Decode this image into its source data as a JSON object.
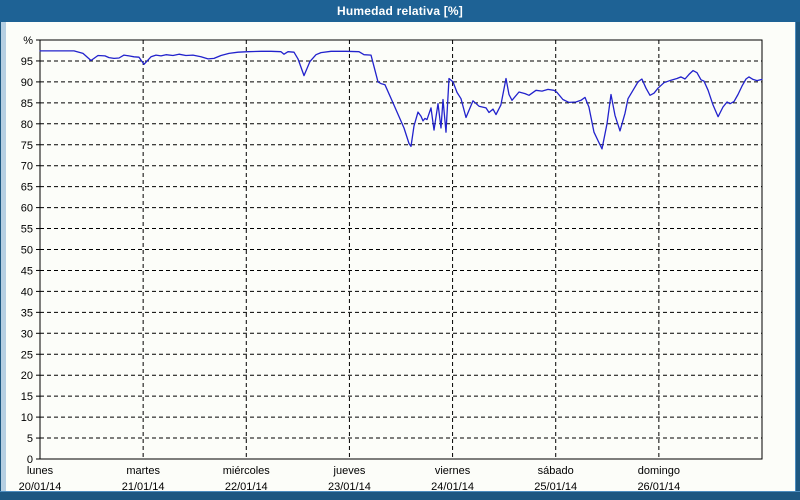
{
  "window": {
    "title": "Humedad relativa [%]"
  },
  "colors": {
    "title_bar": "#1E6295",
    "title_text": "#FFFFFF",
    "frame_light": "#B6CFE2",
    "frame_mid": "#4C8CBE",
    "frame_dark": "#1D5781",
    "content_bg": "#FCFDF9",
    "line": "#2222CC",
    "grid": "#000000",
    "axis": "#000000",
    "label": "#000000"
  },
  "chart_data": {
    "type": "line",
    "title": "Humedad relativa [%]",
    "ylabel": "%",
    "xlabel": "",
    "ylim": [
      0,
      100
    ],
    "ytick_step": 5,
    "ytick_labels": [
      "0",
      "5",
      "10",
      "15",
      "20",
      "25",
      "30",
      "35",
      "40",
      "45",
      "50",
      "55",
      "60",
      "65",
      "70",
      "75",
      "80",
      "85",
      "90",
      "95"
    ],
    "ytop_unit_label": "%",
    "grid": "dashed",
    "legend": "none",
    "x_range_days": [
      0,
      7
    ],
    "x_days": [
      {
        "name": "lunes",
        "date": "20/01/14"
      },
      {
        "name": "martes",
        "date": "21/01/14"
      },
      {
        "name": "miércoles",
        "date": "22/01/14"
      },
      {
        "name": "jueves",
        "date": "23/01/14"
      },
      {
        "name": "viernes",
        "date": "24/01/14"
      },
      {
        "name": "sábado",
        "date": "25/01/14"
      },
      {
        "name": "domingo",
        "date": "26/01/14"
      }
    ],
    "series": [
      {
        "name": "Humedad relativa",
        "unit": "%",
        "points": [
          [
            0.0,
            97.4
          ],
          [
            0.33,
            97.4
          ],
          [
            0.417,
            96.8
          ],
          [
            0.494,
            95.1
          ],
          [
            0.562,
            96.3
          ],
          [
            0.63,
            96.2
          ],
          [
            0.669,
            95.8
          ],
          [
            0.717,
            95.6
          ],
          [
            0.766,
            95.7
          ],
          [
            0.814,
            96.4
          ],
          [
            0.863,
            96.2
          ],
          [
            0.911,
            96.0
          ],
          [
            0.96,
            95.9
          ],
          [
            1.008,
            94.2
          ],
          [
            1.076,
            96.0
          ],
          [
            1.125,
            96.4
          ],
          [
            1.173,
            96.2
          ],
          [
            1.222,
            96.5
          ],
          [
            1.289,
            96.3
          ],
          [
            1.348,
            96.6
          ],
          [
            1.415,
            96.3
          ],
          [
            1.483,
            96.4
          ],
          [
            1.561,
            96.0
          ],
          [
            1.629,
            95.5
          ],
          [
            1.687,
            95.6
          ],
          [
            1.755,
            96.3
          ],
          [
            1.832,
            96.8
          ],
          [
            1.92,
            97.1
          ],
          [
            2.017,
            97.2
          ],
          [
            2.143,
            97.3
          ],
          [
            2.24,
            97.3
          ],
          [
            2.337,
            97.2
          ],
          [
            2.366,
            96.6
          ],
          [
            2.404,
            97.2
          ],
          [
            2.463,
            97.1
          ],
          [
            2.501,
            95.5
          ],
          [
            2.56,
            91.5
          ],
          [
            2.618,
            94.9
          ],
          [
            2.676,
            96.5
          ],
          [
            2.724,
            97.0
          ],
          [
            2.821,
            97.3
          ],
          [
            2.967,
            97.3
          ],
          [
            3.093,
            97.2
          ],
          [
            3.141,
            96.5
          ],
          [
            3.209,
            96.4
          ],
          [
            3.277,
            90.0
          ],
          [
            3.306,
            89.6
          ],
          [
            3.345,
            89.3
          ],
          [
            3.422,
            85.0
          ],
          [
            3.529,
            79.0
          ],
          [
            3.578,
            75.3
          ],
          [
            3.597,
            74.6
          ],
          [
            3.626,
            79.5
          ],
          [
            3.665,
            82.8
          ],
          [
            3.694,
            81.8
          ],
          [
            3.713,
            80.7
          ],
          [
            3.733,
            81.3
          ],
          [
            3.752,
            81.0
          ],
          [
            3.791,
            83.8
          ],
          [
            3.82,
            78.5
          ],
          [
            3.859,
            84.8
          ],
          [
            3.888,
            79.0
          ],
          [
            3.907,
            85.8
          ],
          [
            3.936,
            78.0
          ],
          [
            3.965,
            90.8
          ],
          [
            4.004,
            90.0
          ],
          [
            4.043,
            87.5
          ],
          [
            4.082,
            86.0
          ],
          [
            4.13,
            81.5
          ],
          [
            4.198,
            85.5
          ],
          [
            4.256,
            84.2
          ],
          [
            4.324,
            83.8
          ],
          [
            4.353,
            82.7
          ],
          [
            4.392,
            83.5
          ],
          [
            4.421,
            82.2
          ],
          [
            4.469,
            84.5
          ],
          [
            4.518,
            90.8
          ],
          [
            4.547,
            87.0
          ],
          [
            4.576,
            85.6
          ],
          [
            4.644,
            87.6
          ],
          [
            4.702,
            87.2
          ],
          [
            4.741,
            86.8
          ],
          [
            4.809,
            88.0
          ],
          [
            4.867,
            87.8
          ],
          [
            4.925,
            88.2
          ],
          [
            4.983,
            88.0
          ],
          [
            5.012,
            87.5
          ],
          [
            5.07,
            85.8
          ],
          [
            5.129,
            85.1
          ],
          [
            5.196,
            85.2
          ],
          [
            5.245,
            85.6
          ],
          [
            5.284,
            86.3
          ],
          [
            5.322,
            84.0
          ],
          [
            5.371,
            78.0
          ],
          [
            5.41,
            76.0
          ],
          [
            5.449,
            74.0
          ],
          [
            5.497,
            80.0
          ],
          [
            5.536,
            87.0
          ],
          [
            5.575,
            82.0
          ],
          [
            5.623,
            78.3
          ],
          [
            5.672,
            82.5
          ],
          [
            5.701,
            86.0
          ],
          [
            5.749,
            88.0
          ],
          [
            5.798,
            90.0
          ],
          [
            5.836,
            90.7
          ],
          [
            5.875,
            88.5
          ],
          [
            5.914,
            86.8
          ],
          [
            5.953,
            87.3
          ],
          [
            5.992,
            88.5
          ],
          [
            6.05,
            89.8
          ],
          [
            6.118,
            90.4
          ],
          [
            6.176,
            90.8
          ],
          [
            6.215,
            91.2
          ],
          [
            6.253,
            90.7
          ],
          [
            6.292,
            91.8
          ],
          [
            6.331,
            92.7
          ],
          [
            6.37,
            92.2
          ],
          [
            6.409,
            90.5
          ],
          [
            6.438,
            90.2
          ],
          [
            6.477,
            88.0
          ],
          [
            6.525,
            84.5
          ],
          [
            6.574,
            81.7
          ],
          [
            6.622,
            84.0
          ],
          [
            6.661,
            85.2
          ],
          [
            6.69,
            84.8
          ],
          [
            6.729,
            85.3
          ],
          [
            6.767,
            87.0
          ],
          [
            6.806,
            89.0
          ],
          [
            6.845,
            90.7
          ],
          [
            6.874,
            91.2
          ],
          [
            6.913,
            90.6
          ],
          [
            6.952,
            90.3
          ],
          [
            7.0,
            90.6
          ]
        ]
      }
    ]
  }
}
